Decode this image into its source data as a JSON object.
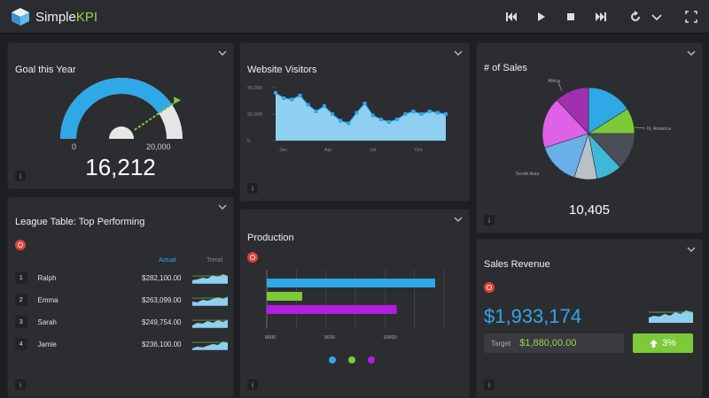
{
  "app": {
    "name_plain": "Simple",
    "name_accent": "KPI"
  },
  "colors": {
    "blue": "#2fa8e8",
    "green": "#7cc93a",
    "purple": "#b51be0",
    "panel": "#2c2d31"
  },
  "toolbar": {
    "icons": [
      "skip-back-icon",
      "play-icon",
      "stop-icon",
      "skip-forward-icon",
      "refresh-icon",
      "chevron-down-icon",
      "fullscreen-icon"
    ]
  },
  "goal": {
    "title": "Goal this Year",
    "min_label": "0",
    "max_label": "20,000",
    "value": "16,212",
    "fraction": 0.81
  },
  "visitors": {
    "title": "Website Visitors",
    "chart_data": {
      "type": "area",
      "x_tick_labels": [
        "Jan",
        "Apr",
        "Jul",
        "Oct"
      ],
      "y_tick_labels": [
        "40,000",
        "20,000",
        "0"
      ],
      "ylim": [
        0,
        40000
      ],
      "values": [
        36000,
        32000,
        31000,
        34000,
        27000,
        22000,
        26000,
        20000,
        15000,
        13000,
        21000,
        28000,
        19000,
        16000,
        14000,
        16000,
        20000,
        22000,
        20000,
        22000,
        21000,
        20000
      ]
    }
  },
  "sales_count": {
    "title": "# of Sales",
    "value": "10,405",
    "labels": {
      "africa": "Africa",
      "n_america": "N. America",
      "south_asia": "South Asia"
    },
    "chart_data": {
      "type": "pie",
      "slices": [
        {
          "color": "#2fa8e8",
          "value": 16
        },
        {
          "color": "#7cc93a",
          "value": 9
        },
        {
          "color": "#4a4f58",
          "value": 13
        },
        {
          "color": "#3fb8d8",
          "value": 9
        },
        {
          "color": "#b8c0c8",
          "value": 8
        },
        {
          "color": "#6ab0e8",
          "value": 15
        },
        {
          "color": "#e060e8",
          "value": 18
        },
        {
          "color": "#a030b0",
          "value": 12
        }
      ]
    }
  },
  "league": {
    "title": "League Table: Top Performing",
    "col_actual": "Actual",
    "col_trend": "Trend",
    "rows": [
      {
        "rank": "1",
        "name": "Ralph",
        "value": "$282,100.00"
      },
      {
        "rank": "2",
        "name": "Emma",
        "value": "$263,099.00"
      },
      {
        "rank": "3",
        "name": "Sarah",
        "value": "$249,754.00"
      },
      {
        "rank": "4",
        "name": "Jamie",
        "value": "$236,100.00"
      }
    ]
  },
  "production": {
    "title": "Production",
    "chart_data": {
      "type": "bar",
      "orientation": "horizontal",
      "x_tick_labels": [
        "8600",
        "9600",
        "10600"
      ],
      "xlim": [
        8600,
        11600
      ],
      "series": [
        {
          "color": "#2fa8e8",
          "value": 11450
        },
        {
          "color": "#7cc93a",
          "value": 9200
        },
        {
          "color": "#b51be0",
          "value": 10800
        }
      ]
    }
  },
  "revenue": {
    "title": "Sales Revenue",
    "value": "$1,933,174",
    "target_label": "Target",
    "target_value": "$1,880,00.00",
    "change": "3%"
  },
  "info_label": "i"
}
